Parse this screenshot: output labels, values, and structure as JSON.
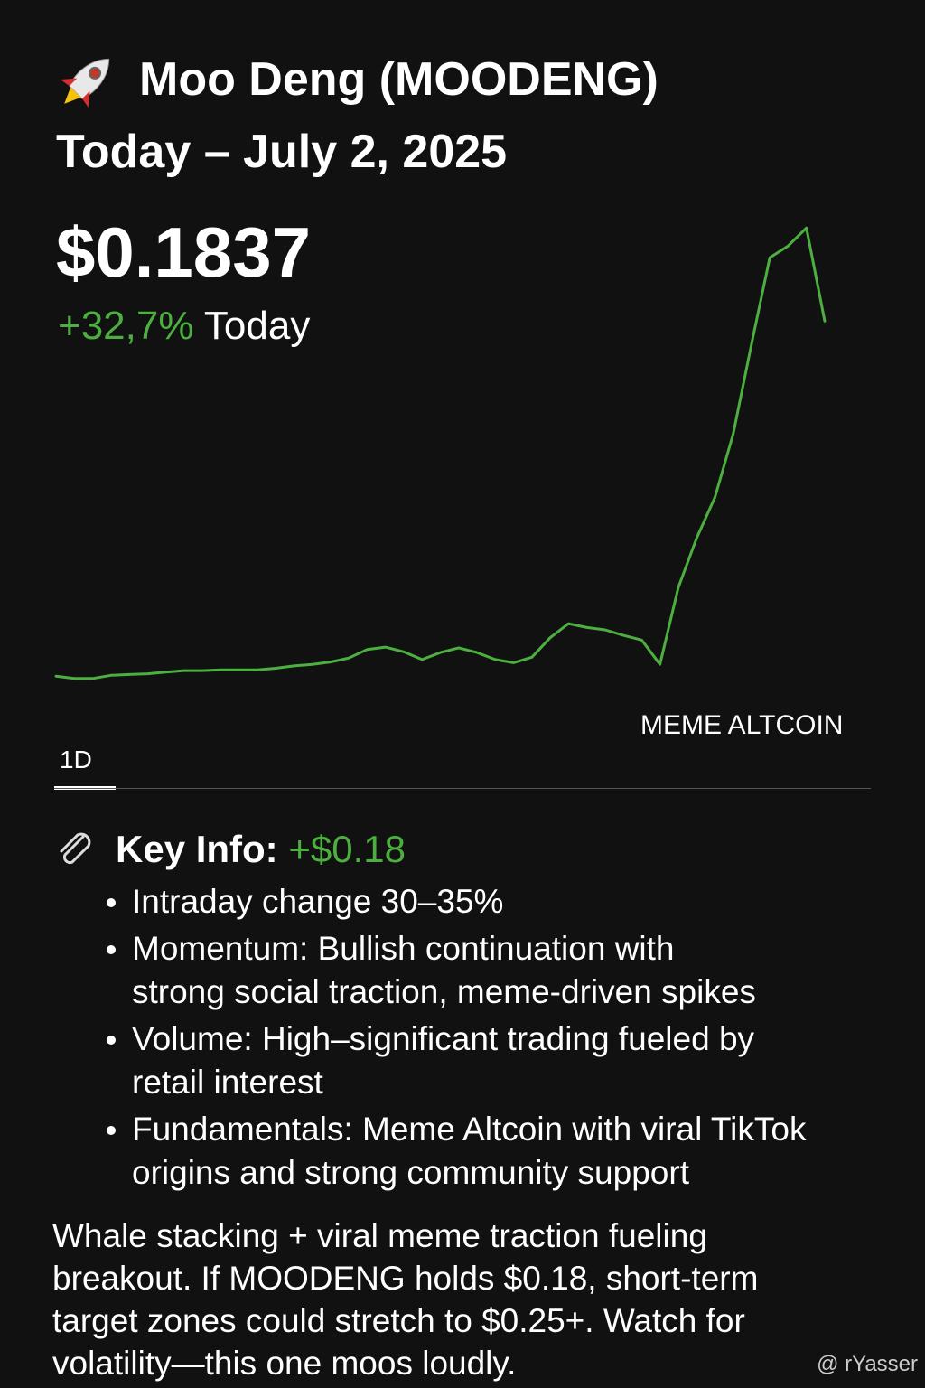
{
  "header": {
    "title": "Moo Deng (MOODENG)",
    "subtitle": "Today – July 2, 2025",
    "price": "$0.1837",
    "change": "+32,7%",
    "change_period": "Today"
  },
  "chart_data": {
    "type": "line",
    "color": "#4caf3f",
    "ylim": [
      0.13,
      0.2
    ],
    "values": [
      0.1384,
      0.1381,
      0.1381,
      0.1385,
      0.1386,
      0.1387,
      0.1389,
      0.1391,
      0.1391,
      0.1392,
      0.1392,
      0.1392,
      0.1394,
      0.1397,
      0.1399,
      0.1402,
      0.1407,
      0.1418,
      0.1421,
      0.1415,
      0.1405,
      0.1414,
      0.142,
      0.1414,
      0.1405,
      0.1401,
      0.1408,
      0.1433,
      0.1451,
      0.1446,
      0.1443,
      0.1436,
      0.143,
      0.1399,
      0.1497,
      0.156,
      0.1612,
      0.1693,
      0.1808,
      0.1918,
      0.1933,
      0.1956,
      0.1837
    ],
    "annotation": "MEME ALTCOIN",
    "timeframe": "1D"
  },
  "key_info": {
    "label": "Key Info:",
    "amount": "+$0.18",
    "bullets": [
      [
        "Intraday change 30–35%"
      ],
      [
        "Momentum: Bullish continuation with",
        "strong social traction, meme-driven spikes"
      ],
      [
        "Volume: High–significant trading fueled by",
        "retail interest"
      ],
      [
        "Fundamentals: Meme Altcoin with viral TikTok",
        "origins and strong community support"
      ]
    ]
  },
  "paragraph": [
    "Whale stacking + viral meme traction fueling",
    "breakout. If MOODENG holds $0.18, short-term",
    "target zones could stretch to $0.25+. Watch for",
    "volatility—this one moos loudly."
  ],
  "watermark": "@ rYasser"
}
